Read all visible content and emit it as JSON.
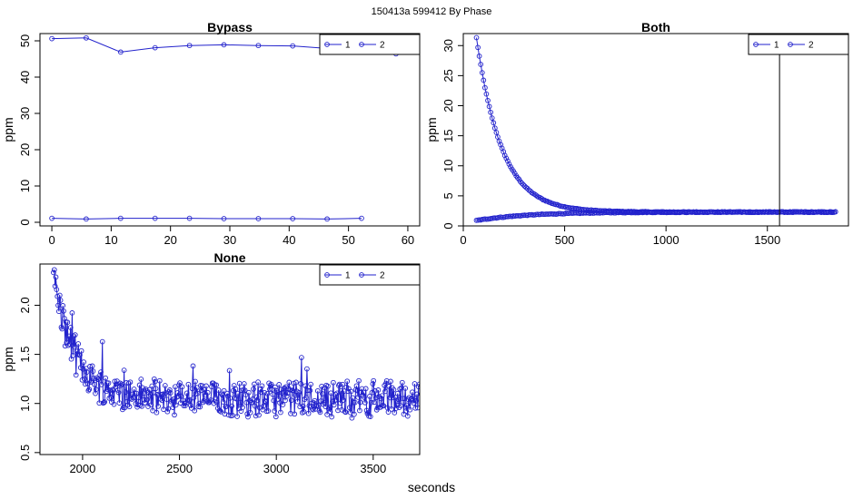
{
  "figure": {
    "suptitle": "150413a   599412   By Phase",
    "xlabel": "seconds"
  },
  "chart_data": [
    {
      "type": "line",
      "title": "Bypass",
      "ylabel": "ppm",
      "xlim": [
        -2,
        62
      ],
      "ylim": [
        -1,
        52
      ],
      "xticks": [
        0,
        10,
        20,
        30,
        40,
        50,
        60
      ],
      "yticks": [
        0,
        10,
        20,
        30,
        40,
        50
      ],
      "legend": {
        "placement": "top-right",
        "entries": [
          "1",
          "2"
        ]
      },
      "series": [
        {
          "name": "1",
          "color": "#2222cc",
          "x": [
            0,
            5.8,
            11.6,
            17.4,
            23.2,
            29,
            34.8,
            40.6,
            46.4,
            52.2,
            58
          ],
          "y": [
            50.6,
            50.8,
            46.9,
            48.1,
            48.7,
            48.9,
            48.7,
            48.6,
            47.9,
            47.4,
            46.4
          ]
        },
        {
          "name": "2",
          "color": "#2222cc",
          "x": [
            0,
            5.8,
            11.6,
            17.4,
            23.2,
            29,
            34.8,
            40.6,
            46.4,
            52.2
          ],
          "y": [
            1.1,
            0.9,
            1.1,
            1.1,
            1.1,
            1.0,
            1.0,
            1.0,
            0.9,
            1.1
          ]
        }
      ],
      "vline": null
    },
    {
      "type": "line",
      "title": "Both",
      "ylabel": "ppm",
      "xlim": [
        0,
        1900
      ],
      "ylim": [
        0,
        32
      ],
      "xticks": [
        0,
        500,
        1000,
        1500
      ],
      "yticks": [
        0,
        5,
        10,
        15,
        20,
        25,
        30
      ],
      "legend": {
        "placement": "top-right",
        "entries": [
          "1",
          "2"
        ]
      },
      "series": [
        {
          "name": "1",
          "color": "#2222cc",
          "model": "decay",
          "x_start": 65,
          "x_end": 1840,
          "x_step": 7,
          "y_start": 31.3,
          "y_end": 2.3,
          "tau": 125
        },
        {
          "name": "2",
          "color": "#2222cc",
          "model": "rise",
          "x_start": 65,
          "x_end": 1840,
          "x_step": 7,
          "y_start": 0.9,
          "y_end": 2.3,
          "tau": 250
        }
      ],
      "vline": 1560
    },
    {
      "type": "line",
      "title": "None",
      "ylabel": "ppm",
      "xlim": [
        1780,
        3740
      ],
      "ylim": [
        0.48,
        2.42
      ],
      "xticks": [
        2000,
        2500,
        3000,
        3500
      ],
      "yticks": [
        0.5,
        1.0,
        1.5,
        2.0
      ],
      "legend": {
        "placement": "top-right",
        "entries": [
          "1",
          "2"
        ]
      },
      "series": [
        {
          "name": "1",
          "color": "#2222cc",
          "model": "noisy-decay",
          "x_start": 1850,
          "x_end": 3740,
          "x_step": 4,
          "y_start": 2.3,
          "y_end": 1.05,
          "tau": 110,
          "noise": 0.17
        }
      ],
      "vline": null
    }
  ]
}
